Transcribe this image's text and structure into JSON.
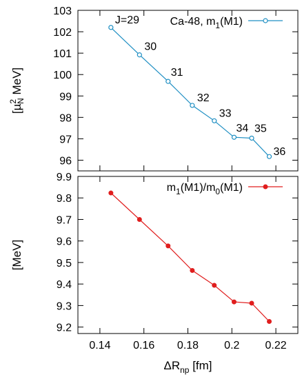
{
  "chart_data": [
    {
      "type": "line",
      "x": [
        0.145,
        0.158,
        0.171,
        0.182,
        0.192,
        0.201,
        0.209,
        0.217
      ],
      "series": [
        {
          "name": "Ca-48, m1(M1)",
          "legend_main": "Ca-48, m",
          "legend_sub": "1",
          "legend_tail": "(M1)",
          "values": [
            102.2,
            100.92,
            99.68,
            98.56,
            97.84,
            97.07,
            97.03,
            96.17
          ],
          "color": "#1f8fc3",
          "marker": "open-circle",
          "point_labels": [
            "J=29",
            "30",
            "31",
            "32",
            "33",
            "34",
            "35",
            "36"
          ]
        }
      ],
      "xlim": [
        0.13,
        0.23
      ],
      "ylim": [
        95.5,
        103
      ],
      "yticks": [
        96,
        97,
        98,
        99,
        100,
        101,
        102,
        103
      ],
      "xticks": [
        0.14,
        0.16,
        0.18,
        0.2,
        0.22
      ],
      "ylabel": "[µ²N MeV]",
      "ylabel_parts": {
        "open": "[µ",
        "sup": "2",
        "sub": "N",
        "rest": " MeV]"
      },
      "legend_position": "top-right",
      "grid": false
    },
    {
      "type": "line",
      "x": [
        0.145,
        0.158,
        0.171,
        0.182,
        0.192,
        0.201,
        0.209,
        0.217
      ],
      "series": [
        {
          "name": "m1(M1)/m0(M1)",
          "legend_parts": [
            "m",
            "1",
            "(M1)/m",
            "0",
            "(M1)"
          ],
          "values": [
            9.823,
            9.7,
            9.577,
            9.463,
            9.394,
            9.317,
            9.311,
            9.226
          ],
          "color": "#e01e1e",
          "marker": "filled-circle"
        }
      ],
      "xlim": [
        0.13,
        0.23
      ],
      "ylim": [
        9.17,
        9.9
      ],
      "yticks": [
        9.2,
        9.3,
        9.4,
        9.5,
        9.6,
        9.7,
        9.8,
        9.9
      ],
      "xticks": [
        0.14,
        0.16,
        0.18,
        0.2,
        0.22
      ],
      "xtick_labels": [
        "0.14",
        "0.16",
        "0.18",
        "0.2",
        "0.22"
      ],
      "ylabel": "[MeV]",
      "xlabel": "ΔRnp  [fm]",
      "xlabel_parts": {
        "main": "ΔR",
        "sub": "np",
        "rest": "  [fm]"
      },
      "legend_position": "top-right",
      "grid": false
    }
  ]
}
